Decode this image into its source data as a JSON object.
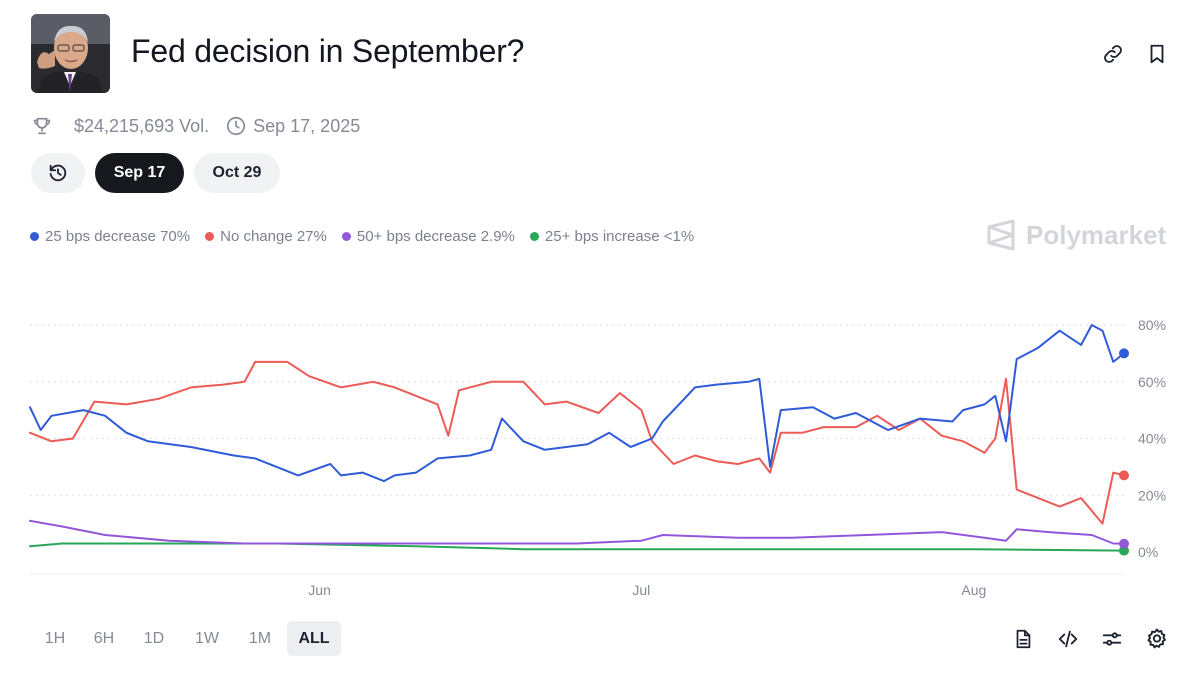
{
  "header": {
    "title": "Fed decision in September?"
  },
  "meta": {
    "volume": "$24,215,693 Vol.",
    "date": "Sep 17, 2025"
  },
  "date_tabs": [
    "Sep 17",
    "Oct 29"
  ],
  "selected_date_tab": "Sep 17",
  "brand": "Polymarket",
  "legend": [
    {
      "label": "25 bps decrease 70%",
      "color": "#2f5bd9"
    },
    {
      "label": "No change 27%",
      "color": "#ec5b56"
    },
    {
      "label": "50+ bps decrease 2.9%",
      "color": "#9257d9"
    },
    {
      "label": "25+ bps increase <1%",
      "color": "#27a757"
    }
  ],
  "time_ranges": [
    "1H",
    "6H",
    "1D",
    "1W",
    "1M",
    "ALL"
  ],
  "selected_time_range": "ALL",
  "colors": {
    "blue": "#2f5bd9",
    "red": "#ec5b56",
    "purple": "#9257d9",
    "green": "#27a757",
    "gridline": "#dcdee2"
  },
  "icons": {
    "header": [
      "link-icon",
      "bookmark-icon"
    ],
    "meta": [
      "trophy-icon",
      "clock-icon"
    ],
    "toolbar": [
      "document-icon",
      "code-embed-icon",
      "sliders-icon",
      "gear-icon"
    ]
  },
  "chart_data": {
    "type": "line",
    "xlabel": "",
    "ylabel": "",
    "x_tick_labels": [
      "Jun",
      "Jul",
      "Aug"
    ],
    "y_tick_labels": [
      "0%",
      "20%",
      "40%",
      "60%",
      "80%"
    ],
    "ylim": [
      0,
      80
    ],
    "grid": "horizontal dotted",
    "legend_position": "top-left",
    "x_range": [
      "2025-05-05",
      "2025-08-15"
    ],
    "series": [
      {
        "name": "25 bps decrease",
        "color": "#2f5bd9",
        "points": [
          [
            "2025-05-05",
            51
          ],
          [
            "2025-05-06",
            43
          ],
          [
            "2025-05-07",
            48
          ],
          [
            "2025-05-10",
            50
          ],
          [
            "2025-05-12",
            48
          ],
          [
            "2025-05-14",
            42
          ],
          [
            "2025-05-16",
            39
          ],
          [
            "2025-05-20",
            37
          ],
          [
            "2025-05-24",
            34
          ],
          [
            "2025-05-26",
            33
          ],
          [
            "2025-05-28",
            30
          ],
          [
            "2025-05-30",
            27
          ],
          [
            "2025-06-02",
            31
          ],
          [
            "2025-06-03",
            27
          ],
          [
            "2025-06-05",
            28
          ],
          [
            "2025-06-07",
            25
          ],
          [
            "2025-06-08",
            27
          ],
          [
            "2025-06-10",
            28
          ],
          [
            "2025-06-12",
            33
          ],
          [
            "2025-06-15",
            34
          ],
          [
            "2025-06-17",
            36
          ],
          [
            "2025-06-18",
            47
          ],
          [
            "2025-06-20",
            39
          ],
          [
            "2025-06-22",
            36
          ],
          [
            "2025-06-26",
            38
          ],
          [
            "2025-06-28",
            42
          ],
          [
            "2025-06-30",
            37
          ],
          [
            "2025-07-02",
            40
          ],
          [
            "2025-07-03",
            46
          ],
          [
            "2025-07-05",
            54
          ],
          [
            "2025-07-06",
            58
          ],
          [
            "2025-07-08",
            59
          ],
          [
            "2025-07-11",
            60
          ],
          [
            "2025-07-12",
            61
          ],
          [
            "2025-07-13",
            30
          ],
          [
            "2025-07-14",
            50
          ],
          [
            "2025-07-17",
            51
          ],
          [
            "2025-07-19",
            47
          ],
          [
            "2025-07-21",
            49
          ],
          [
            "2025-07-24",
            43
          ],
          [
            "2025-07-27",
            47
          ],
          [
            "2025-07-30",
            46
          ],
          [
            "2025-07-31",
            50
          ],
          [
            "2025-08-02",
            52
          ],
          [
            "2025-08-03",
            55
          ],
          [
            "2025-08-04",
            39
          ],
          [
            "2025-08-05",
            68
          ],
          [
            "2025-08-07",
            72
          ],
          [
            "2025-08-09",
            78
          ],
          [
            "2025-08-11",
            73
          ],
          [
            "2025-08-12",
            80
          ],
          [
            "2025-08-13",
            78
          ],
          [
            "2025-08-14",
            67
          ],
          [
            "2025-08-15",
            70
          ]
        ]
      },
      {
        "name": "No change",
        "color": "#ec5b56",
        "points": [
          [
            "2025-05-05",
            42
          ],
          [
            "2025-05-07",
            39
          ],
          [
            "2025-05-09",
            40
          ],
          [
            "2025-05-11",
            53
          ],
          [
            "2025-05-14",
            52
          ],
          [
            "2025-05-17",
            54
          ],
          [
            "2025-05-20",
            58
          ],
          [
            "2025-05-23",
            59
          ],
          [
            "2025-05-25",
            60
          ],
          [
            "2025-05-26",
            67
          ],
          [
            "2025-05-29",
            67
          ],
          [
            "2025-05-31",
            62
          ],
          [
            "2025-06-03",
            58
          ],
          [
            "2025-06-06",
            60
          ],
          [
            "2025-06-08",
            58
          ],
          [
            "2025-06-10",
            55
          ],
          [
            "2025-06-12",
            52
          ],
          [
            "2025-06-13",
            41
          ],
          [
            "2025-06-14",
            57
          ],
          [
            "2025-06-17",
            60
          ],
          [
            "2025-06-20",
            60
          ],
          [
            "2025-06-22",
            52
          ],
          [
            "2025-06-24",
            53
          ],
          [
            "2025-06-27",
            49
          ],
          [
            "2025-06-29",
            56
          ],
          [
            "2025-07-01",
            50
          ],
          [
            "2025-07-02",
            39
          ],
          [
            "2025-07-04",
            31
          ],
          [
            "2025-07-06",
            34
          ],
          [
            "2025-07-08",
            32
          ],
          [
            "2025-07-10",
            31
          ],
          [
            "2025-07-12",
            33
          ],
          [
            "2025-07-13",
            28
          ],
          [
            "2025-07-14",
            42
          ],
          [
            "2025-07-16",
            42
          ],
          [
            "2025-07-18",
            44
          ],
          [
            "2025-07-21",
            44
          ],
          [
            "2025-07-23",
            48
          ],
          [
            "2025-07-25",
            43
          ],
          [
            "2025-07-27",
            47
          ],
          [
            "2025-07-29",
            41
          ],
          [
            "2025-07-31",
            39
          ],
          [
            "2025-08-02",
            35
          ],
          [
            "2025-08-03",
            40
          ],
          [
            "2025-08-04",
            61
          ],
          [
            "2025-08-05",
            22
          ],
          [
            "2025-08-07",
            19
          ],
          [
            "2025-08-09",
            16
          ],
          [
            "2025-08-11",
            19
          ],
          [
            "2025-08-13",
            10
          ],
          [
            "2025-08-14",
            28
          ],
          [
            "2025-08-15",
            27
          ]
        ]
      },
      {
        "name": "50+ bps decrease",
        "color": "#9257d9",
        "points": [
          [
            "2025-05-05",
            11
          ],
          [
            "2025-05-08",
            9
          ],
          [
            "2025-05-12",
            6
          ],
          [
            "2025-05-18",
            4
          ],
          [
            "2025-05-25",
            3
          ],
          [
            "2025-06-05",
            3
          ],
          [
            "2025-06-15",
            3
          ],
          [
            "2025-06-25",
            3
          ],
          [
            "2025-07-01",
            4
          ],
          [
            "2025-07-03",
            6
          ],
          [
            "2025-07-10",
            5
          ],
          [
            "2025-07-15",
            5
          ],
          [
            "2025-07-22",
            6
          ],
          [
            "2025-07-29",
            7
          ],
          [
            "2025-08-02",
            5
          ],
          [
            "2025-08-04",
            4
          ],
          [
            "2025-08-05",
            8
          ],
          [
            "2025-08-08",
            7
          ],
          [
            "2025-08-12",
            6
          ],
          [
            "2025-08-14",
            3
          ],
          [
            "2025-08-15",
            2.9
          ]
        ]
      },
      {
        "name": "25+ bps increase",
        "color": "#27a757",
        "points": [
          [
            "2025-05-05",
            2
          ],
          [
            "2025-05-08",
            3
          ],
          [
            "2025-05-12",
            3
          ],
          [
            "2025-05-20",
            3
          ],
          [
            "2025-05-28",
            3
          ],
          [
            "2025-06-10",
            2
          ],
          [
            "2025-06-20",
            1
          ],
          [
            "2025-07-05",
            1
          ],
          [
            "2025-07-20",
            1
          ],
          [
            "2025-08-01",
            1
          ],
          [
            "2025-08-15",
            0.5
          ]
        ]
      }
    ]
  }
}
